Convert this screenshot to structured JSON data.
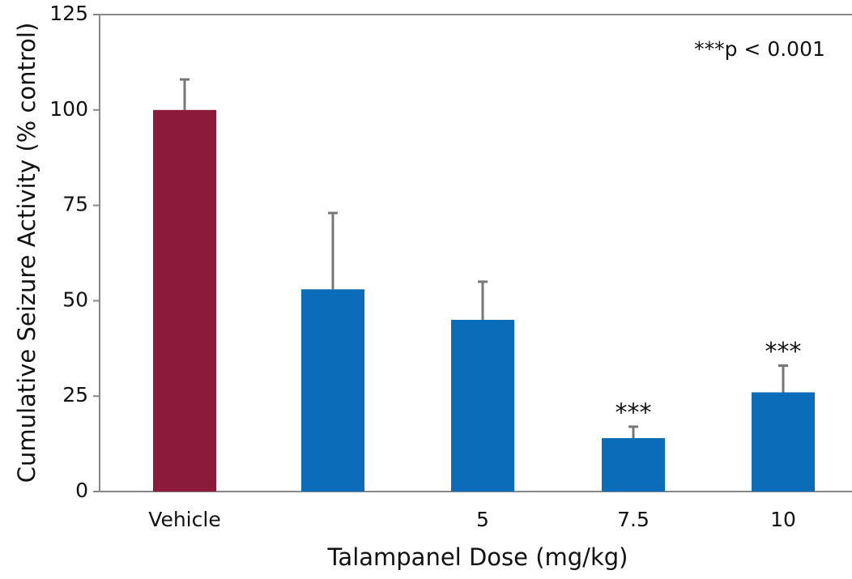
{
  "chart_data": {
    "type": "bar",
    "categories": [
      "Vehicle",
      null,
      "5",
      "7.5",
      "10"
    ],
    "values": [
      100,
      53,
      45,
      14,
      26
    ],
    "errors": [
      8,
      20,
      10,
      3,
      7
    ],
    "colors": [
      "#8c1a3a",
      "#0b6dba",
      "#0b6dba",
      "#0b6dba",
      "#0b6dba"
    ],
    "significance": [
      null,
      null,
      null,
      "***",
      "***"
    ],
    "annotation": "***p < 0.001",
    "xlabel": "Talampanel Dose (mg/kg)",
    "ylabel": "Cumulative Seizure Activity (% control)",
    "ylim": [
      0,
      125
    ],
    "yticks": [
      0,
      25,
      50,
      75,
      100,
      125
    ]
  }
}
